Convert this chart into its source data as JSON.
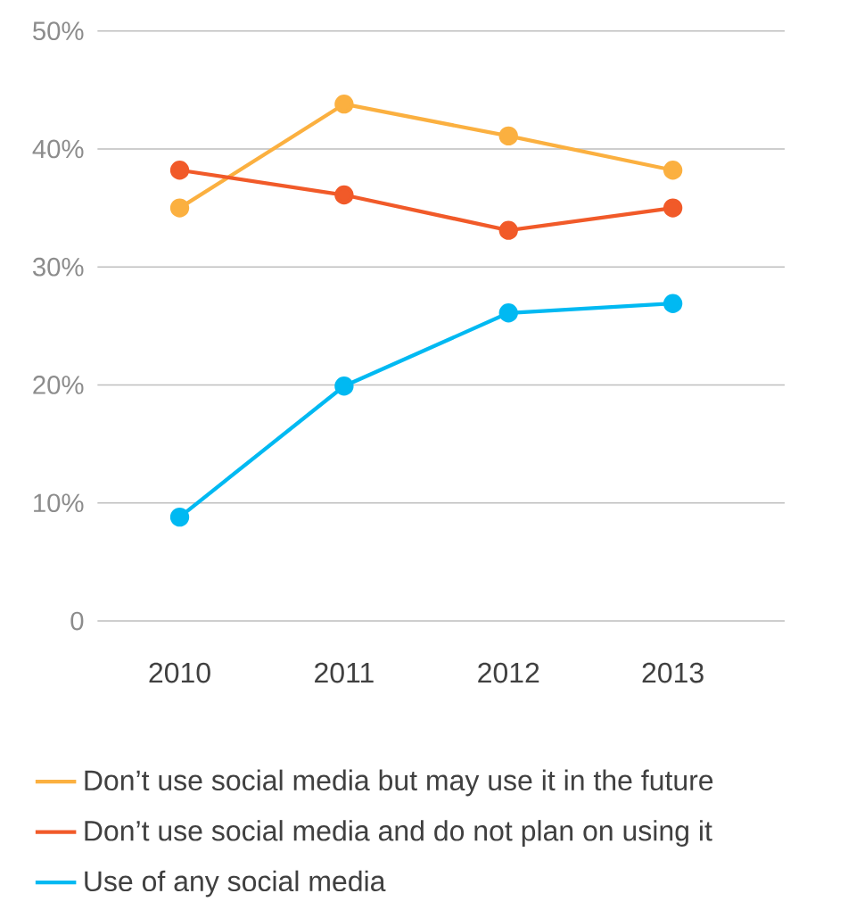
{
  "chart_data": {
    "type": "line",
    "categories": [
      "2010",
      "2011",
      "2012",
      "2013"
    ],
    "series": [
      {
        "name": "Don’t use social media but may use it in the future",
        "color": "#fbb040",
        "values": [
          35.0,
          43.8,
          41.1,
          38.2
        ]
      },
      {
        "name": "Don’t use social media and do not plan on using it",
        "color": "#f15a29",
        "values": [
          38.2,
          36.1,
          33.1,
          35.0
        ]
      },
      {
        "name": "Use of any social media",
        "color": "#00b9f2",
        "values": [
          8.8,
          19.9,
          26.1,
          26.9
        ]
      }
    ],
    "ylim": [
      0,
      50
    ],
    "yticks": [
      {
        "value": 0,
        "label": "0"
      },
      {
        "value": 10,
        "label": "10%"
      },
      {
        "value": 20,
        "label": "20%"
      },
      {
        "value": 30,
        "label": "30%"
      },
      {
        "value": 40,
        "label": "40%"
      },
      {
        "value": 50,
        "label": "50%"
      }
    ],
    "grid": "y",
    "legend": "bottom",
    "marker": "circle",
    "line_style": "solid"
  }
}
